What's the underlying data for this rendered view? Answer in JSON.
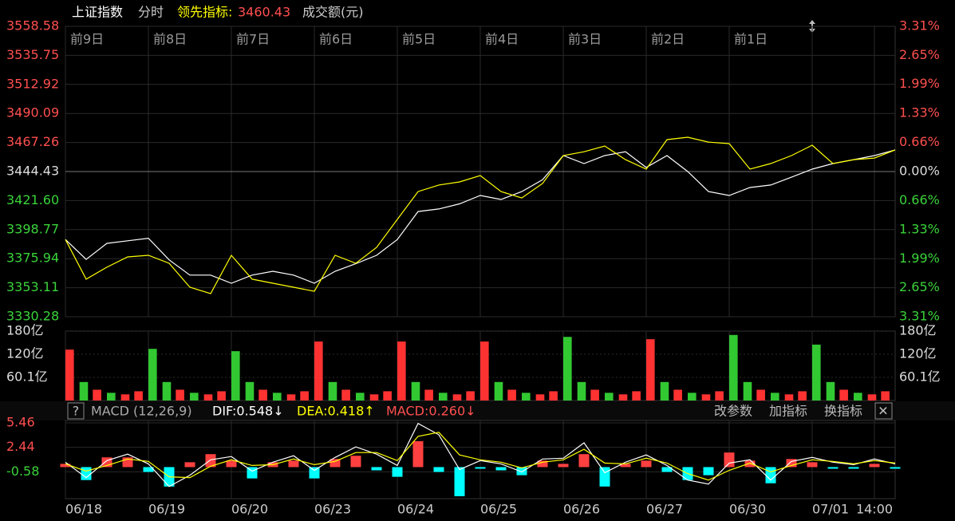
{
  "header": {
    "title": "上证指数",
    "mode": "分时",
    "indicator_label": "领先指标:",
    "indicator_value": "3460.43",
    "volume_label": "成交额(元)"
  },
  "macd_bar": {
    "help": "?",
    "name": "MACD (12,26,9)",
    "dif": "DIF:0.548↓",
    "dea": "DEA:0.418↑",
    "macd": "MACD:0.260↓",
    "buttons": [
      "改参数",
      "加指标",
      "换指标"
    ],
    "close": "✕"
  },
  "chart_data": [
    {
      "type": "line",
      "x": [
        0,
        0.25,
        0.5,
        0.75,
        1,
        1.25,
        1.5,
        1.75,
        2,
        2.25,
        2.5,
        2.75,
        3,
        3.25,
        3.5,
        3.75,
        4,
        4.25,
        4.5,
        4.75,
        5,
        5.25,
        5.5,
        5.75,
        6,
        6.25,
        6.5,
        6.75,
        7,
        7.25,
        7.5,
        7.75,
        8,
        8.25,
        8.5,
        8.75,
        9,
        9.25,
        9.5,
        9.75,
        10
      ],
      "series": [
        {
          "color": "#ffffff",
          "values": [
            3391,
            3375.4,
            3388,
            3390,
            3392,
            3375,
            3363,
            3363,
            3356.6,
            3363,
            3366,
            3363,
            3356.6,
            3366,
            3372,
            3378.6,
            3391,
            3413,
            3415,
            3419,
            3425.6,
            3422.5,
            3428.7,
            3438,
            3457,
            3450.7,
            3457,
            3460,
            3447.6,
            3457,
            3444.4,
            3428.7,
            3425.6,
            3431.9,
            3433.8,
            3440,
            3446.3,
            3450.7,
            3453.8,
            3457,
            3461.4
          ]
        },
        {
          "color": "#ffff00",
          "values": [
            3391,
            3359.8,
            3369.2,
            3377.3,
            3378.6,
            3372.3,
            3353.5,
            3348.5,
            3378.6,
            3359.8,
            3356.6,
            3353.5,
            3350.3,
            3378.6,
            3372.3,
            3384.8,
            3406.8,
            3428.7,
            3433.8,
            3436.3,
            3441.3,
            3428.7,
            3423.7,
            3435,
            3457,
            3460,
            3464.5,
            3453.8,
            3446.3,
            3469.5,
            3471.4,
            3467.6,
            3466.4,
            3446.3,
            3450.7,
            3457,
            3465.1,
            3450.7,
            3453.8,
            3455,
            3461.4
          ]
        }
      ],
      "xlim": [
        0,
        10
      ],
      "xticks": [
        {
          "value": 0,
          "label": "前9日"
        },
        {
          "value": 1,
          "label": "前8日"
        },
        {
          "value": 2,
          "label": "前7日"
        },
        {
          "value": 3,
          "label": "前6日"
        },
        {
          "value": 4,
          "label": "前5日"
        },
        {
          "value": 5,
          "label": "前4日"
        },
        {
          "value": 6,
          "label": "前3日"
        },
        {
          "value": 7,
          "label": "前2日"
        },
        {
          "value": 8,
          "label": "前1日"
        }
      ],
      "ylim": [
        3330.28,
        3558.58
      ],
      "yticks": [
        3558.58,
        3535.75,
        3512.92,
        3490.09,
        3467.26,
        3444.43,
        {
          "value": 3421.6,
          "label": "3421.60"
        },
        3398.77,
        3375.94,
        3353.11,
        3330.28
      ],
      "y2lim": [
        -3.31,
        3.31
      ],
      "y2ticks": [
        {
          "value": 3.31,
          "label": "3.31%"
        },
        {
          "value": 2.65,
          "label": "2.65%"
        },
        {
          "value": 1.99,
          "label": "1.99%"
        },
        {
          "value": 1.33,
          "label": "1.33%"
        },
        {
          "value": 0.66,
          "label": "0.66%"
        },
        {
          "value": 0,
          "label": "0.00%"
        },
        {
          "value": -0.66,
          "label": "0.66%"
        },
        {
          "value": -1.33,
          "label": "1.33%"
        },
        {
          "value": -1.99,
          "label": "1.99%"
        },
        {
          "value": -2.65,
          "label": "2.65%"
        },
        {
          "value": -3.31,
          "label": "3.31%"
        }
      ],
      "grid": true
    },
    {
      "type": "bar",
      "x": [
        0,
        0.17,
        0.33,
        0.5,
        0.67,
        0.83,
        1,
        1.17,
        1.33,
        1.5,
        1.67,
        1.83,
        2,
        2.17,
        2.33,
        2.5,
        2.67,
        2.83,
        3,
        3.17,
        3.33,
        3.5,
        3.67,
        3.83,
        4,
        4.17,
        4.33,
        4.5,
        4.67,
        4.83,
        5,
        5.17,
        5.33,
        5.5,
        5.67,
        5.83,
        6,
        6.17,
        6.33,
        6.5,
        6.67,
        6.83,
        7,
        7.17,
        7.33,
        7.5,
        7.67,
        7.83,
        8,
        8.17,
        8.33,
        8.5,
        8.67,
        8.83,
        9,
        9.17,
        9.33,
        9.5,
        9.67,
        9.83
      ],
      "values": [
        132,
        48,
        28,
        20,
        16,
        24,
        134,
        48,
        28,
        20,
        16,
        24,
        128,
        48,
        28,
        20,
        16,
        24,
        153,
        48,
        28,
        20,
        16,
        24,
        153,
        48,
        28,
        20,
        16,
        24,
        153,
        48,
        28,
        20,
        16,
        24,
        165,
        48,
        28,
        20,
        16,
        24,
        159,
        48,
        28,
        20,
        16,
        24,
        170,
        48,
        28,
        20,
        16,
        24,
        145,
        48,
        28,
        20,
        16,
        24
      ],
      "colors": [
        "#ff3232",
        "#32c832",
        "#ff3232",
        "#32c832",
        "#ff3232",
        "#ff3232",
        "#32c832",
        "#32c832",
        "#ff3232",
        "#32c832",
        "#ff3232",
        "#ff3232",
        "#32c832",
        "#32c832",
        "#ff3232",
        "#32c832",
        "#ff3232",
        "#ff3232",
        "#ff3232",
        "#32c832",
        "#ff3232",
        "#32c832",
        "#ff3232",
        "#ff3232",
        "#ff3232",
        "#32c832",
        "#ff3232",
        "#32c832",
        "#ff3232",
        "#ff3232",
        "#ff3232",
        "#32c832",
        "#ff3232",
        "#32c832",
        "#ff3232",
        "#ff3232",
        "#32c832",
        "#32c832",
        "#ff3232",
        "#32c832",
        "#ff3232",
        "#ff3232",
        "#ff3232",
        "#32c832",
        "#ff3232",
        "#32c832",
        "#ff3232",
        "#ff3232",
        "#32c832",
        "#32c832",
        "#ff3232",
        "#32c832",
        "#ff3232",
        "#ff3232",
        "#32c832",
        "#32c832",
        "#ff3232",
        "#32c832",
        "#ff3232",
        "#ff3232"
      ],
      "xlim": [
        0,
        10
      ],
      "ylim": [
        0,
        180
      ],
      "yticks": [
        {
          "value": 180,
          "label": "180亿"
        },
        {
          "value": 120,
          "label": "120亿"
        },
        {
          "value": 60.1,
          "label": "60.1亿"
        }
      ]
    },
    {
      "type": "macd",
      "x": [
        0,
        0.25,
        0.5,
        0.75,
        1,
        1.25,
        1.5,
        1.75,
        2,
        2.25,
        2.5,
        2.75,
        3,
        3.25,
        3.5,
        3.75,
        4,
        4.25,
        4.5,
        4.75,
        5,
        5.25,
        5.5,
        5.75,
        6,
        6.25,
        6.5,
        6.75,
        7,
        7.25,
        7.5,
        7.75,
        8,
        8.25,
        8.5,
        8.75,
        9,
        9.25,
        9.5,
        9.75,
        10
      ],
      "series": [
        {
          "color": "#ffffff",
          "values": [
            0.6,
            -1.3,
            0.8,
            1.6,
            0.4,
            -2.4,
            -1.0,
            0.9,
            1.3,
            -0.5,
            0.6,
            1.4,
            -0.4,
            1.2,
            2.5,
            1.6,
            0.2,
            5.4,
            4.0,
            -0.3,
            0.8,
            0.4,
            -0.6,
            1.0,
            1.1,
            3.0,
            -0.7,
            0.6,
            1.5,
            0.2,
            -1.6,
            -2.1,
            0.5,
            0.9,
            -1.6,
            0.7,
            1.2,
            0.6,
            0.3,
            1.0,
            0.4
          ]
        },
        {
          "color": "#ffff00",
          "values": [
            0.4,
            -0.5,
            0.2,
            1.0,
            0.7,
            -1.2,
            -1.3,
            0.1,
            0.9,
            0.2,
            0.3,
            1.0,
            0.3,
            0.7,
            1.8,
            1.8,
            0.8,
            3.8,
            4.3,
            1.5,
            0.9,
            0.6,
            -0.1,
            0.6,
            0.9,
            2.2,
            0.5,
            0.4,
            1.1,
            0.5,
            -0.8,
            -1.6,
            -0.4,
            0.5,
            -0.6,
            0.2,
            0.9,
            0.7,
            0.4,
            0.8,
            0.5
          ]
        }
      ],
      "histogram": [
        0.4,
        -1.6,
        1.2,
        1.2,
        -0.6,
        -2.4,
        0.6,
        1.6,
        0.8,
        -1.4,
        0.6,
        0.8,
        -1.4,
        1.0,
        1.4,
        -0.4,
        -1.2,
        3.2,
        -0.6,
        -3.6,
        -0.2,
        -0.4,
        -1.0,
        0.8,
        0.4,
        1.6,
        -2.4,
        0.4,
        0.8,
        -0.6,
        -1.6,
        -1.0,
        1.8,
        0.8,
        -2.0,
        1.0,
        0.6,
        -0.2,
        -0.2,
        0.4,
        -0.2
      ],
      "up_color": "#ff4040",
      "down_color": "#00ffff",
      "xlim": [
        0,
        10
      ],
      "xticks": [
        {
          "value": 0,
          "label": "06/18"
        },
        {
          "value": 1,
          "label": "06/19"
        },
        {
          "value": 2,
          "label": "06/20"
        },
        {
          "value": 3,
          "label": "06/23"
        },
        {
          "value": 4,
          "label": "06/24"
        },
        {
          "value": 5,
          "label": "06/25"
        },
        {
          "value": 6,
          "label": "06/26"
        },
        {
          "value": 7,
          "label": "06/27"
        },
        {
          "value": 8,
          "label": "06/30"
        },
        {
          "value": 9,
          "label": "07/01"
        },
        {
          "value": 9.75,
          "label": "14:00"
        }
      ],
      "ylim": [
        -3.9,
        5.76
      ],
      "yticks": [
        5.46,
        2.44,
        -0.58
      ]
    }
  ]
}
